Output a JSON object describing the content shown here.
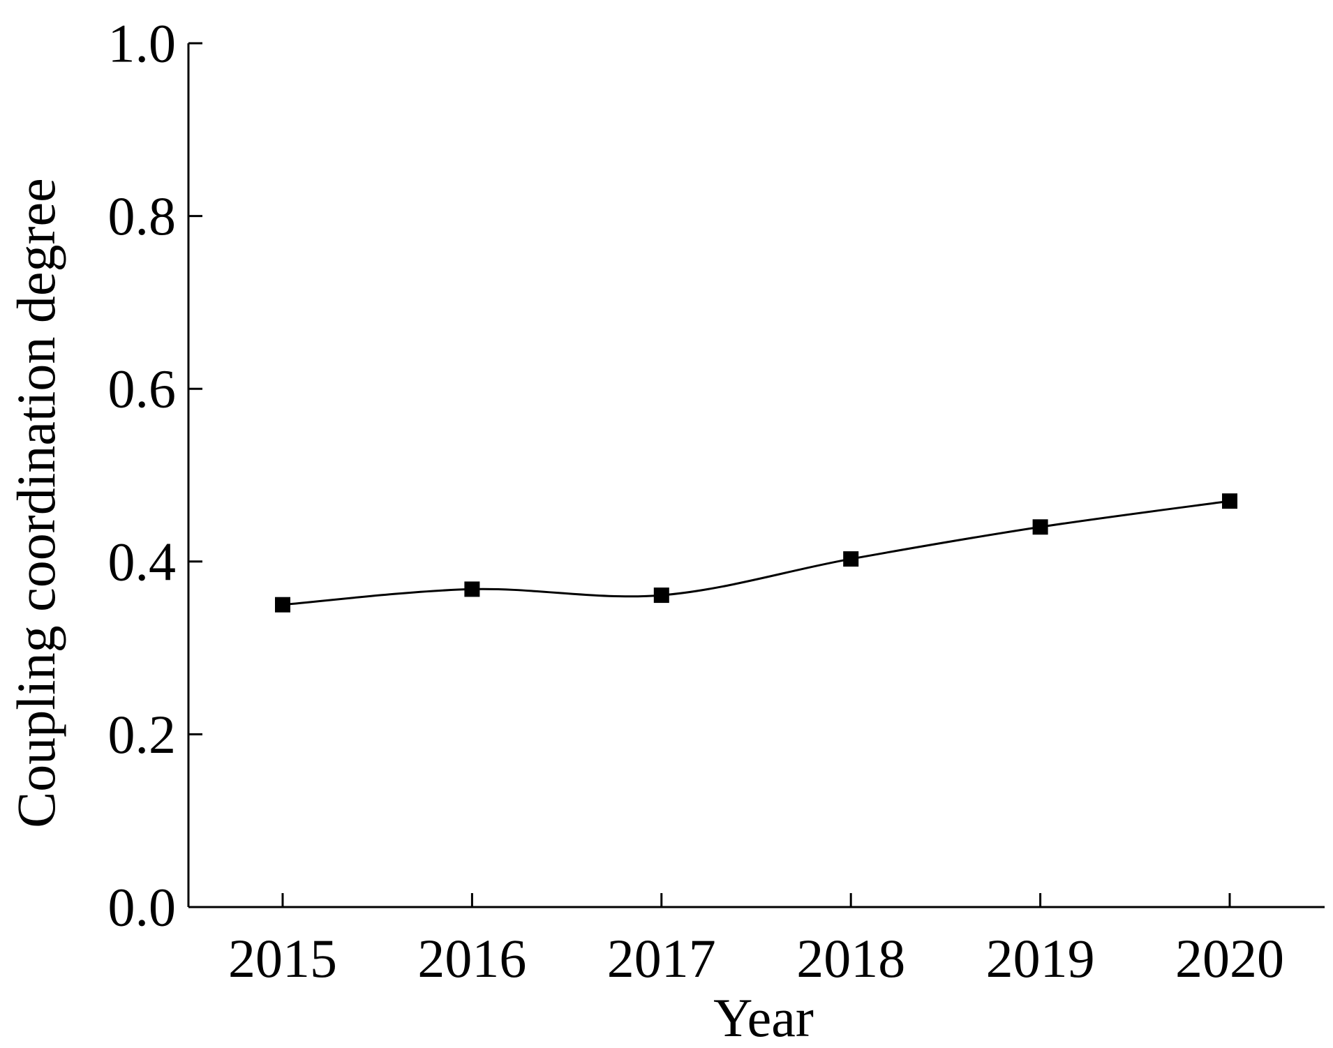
{
  "chart_data": {
    "type": "line",
    "title": "",
    "xlabel": "Year",
    "ylabel": "Coupling coordination  degree",
    "x": [
      "2015",
      "2016",
      "2017",
      "2018",
      "2019",
      "2020"
    ],
    "series": [
      {
        "values": [
          0.35,
          0.368,
          0.361,
          0.403,
          0.44,
          0.47
        ],
        "marker": "square",
        "color": "#000000",
        "smooth": true
      }
    ],
    "ylim": [
      0,
      1.0
    ],
    "yticks": [
      0.0,
      0.2,
      0.4,
      0.6,
      0.8,
      1.0
    ],
    "ytick_labels": [
      "0.0",
      "0.2",
      "0.4",
      "0.6",
      "0.8",
      "1.0"
    ],
    "grid": false,
    "legend": "none"
  }
}
